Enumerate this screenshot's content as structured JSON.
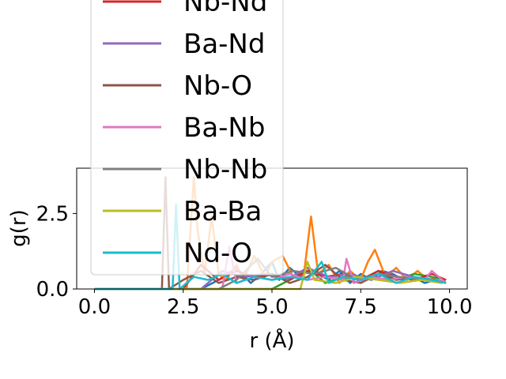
{
  "chart_data": {
    "type": "line",
    "xlabel": "r (Å)",
    "ylabel": "g(r)",
    "xlim": [
      -0.5,
      10.5
    ],
    "ylim": [
      0,
      4.0
    ],
    "xticks": [
      "0.0",
      "2.5",
      "5.0",
      "7.5",
      "10.0"
    ],
    "yticks": [
      "0.0",
      "2.5"
    ],
    "grid": false,
    "legend_position": "upper-left, overflowing above plot",
    "series": [
      {
        "name": "",
        "color": "#1f77b4",
        "x": [
          0,
          1,
          2,
          3,
          3.5,
          4,
          4.4,
          4.7,
          5.0,
          5.2,
          5.5,
          5.8,
          6.0,
          6.3,
          6.6,
          6.9,
          7.2,
          7.5,
          7.8,
          8.1,
          8.4,
          8.7,
          9.0,
          9.3,
          9.6,
          9.9
        ],
        "y": [
          0,
          0,
          0,
          0,
          0.3,
          0.7,
          0.2,
          0.5,
          0.9,
          0.3,
          0.7,
          0.4,
          0.6,
          0.5,
          0.3,
          0.6,
          0.2,
          0.5,
          0.3,
          0.6,
          0.5,
          0.3,
          0.4,
          0.2,
          0.3,
          0.2
        ]
      },
      {
        "name": "",
        "color": "#ff7f0e",
        "x": [
          0,
          1,
          2,
          2.6,
          2.8,
          2.9,
          3.1,
          3.3,
          3.5,
          3.7,
          4.0,
          4.2,
          4.5,
          4.8,
          5.0,
          5.3,
          5.6,
          5.9,
          6.1,
          6.3,
          6.6,
          6.9,
          7.2,
          7.5,
          7.7,
          7.9,
          8.2,
          8.5,
          8.8,
          9.1,
          9.4,
          9.7,
          9.9
        ],
        "y": [
          0,
          0,
          0,
          0,
          3.7,
          2.0,
          0.5,
          2.4,
          0.5,
          0.3,
          0.8,
          0.3,
          1.1,
          0.4,
          0.9,
          1.1,
          0.4,
          0.5,
          2.4,
          0.5,
          0.8,
          0.2,
          0.6,
          0.3,
          0.9,
          1.3,
          0.4,
          0.7,
          0.3,
          0.6,
          0.3,
          0.4,
          0.2
        ]
      },
      {
        "name": "",
        "color": "#2ca02c",
        "x": [
          0,
          1,
          2,
          3,
          4,
          5,
          5.5,
          6.0,
          6.5,
          7.0,
          7.5,
          8.0,
          8.5,
          9.0,
          9.5,
          9.9
        ],
        "y": [
          0,
          0,
          0,
          0,
          0,
          0,
          0.3,
          0.7,
          0.2,
          0.4,
          0.3,
          0.6,
          0.3,
          0.5,
          0.4,
          0.3
        ]
      },
      {
        "name": "Nb-Nd",
        "color": "#d62728",
        "x": [
          0,
          1,
          2,
          2.5,
          3.0,
          3.5,
          4.0,
          4.5,
          5.0,
          5.5,
          6.0,
          6.5,
          7.0,
          7.5,
          8.0,
          8.5,
          9.0,
          9.5,
          9.9
        ],
        "y": [
          0,
          0,
          0,
          0,
          0.8,
          0.3,
          0.6,
          0.4,
          0.5,
          0.3,
          0.6,
          0.4,
          0.5,
          0.3,
          0.6,
          0.4,
          0.3,
          0.5,
          0.3
        ]
      },
      {
        "name": "Ba-Nd",
        "color": "#9467bd",
        "x": [
          0,
          1,
          2,
          3,
          3.6,
          4.2,
          4.8,
          5.4,
          6.0,
          6.6,
          7.2,
          7.8,
          8.4,
          9.0,
          9.6,
          9.9
        ],
        "y": [
          0,
          0,
          0,
          0,
          0.6,
          0.4,
          0.5,
          0.3,
          0.7,
          0.4,
          0.5,
          0.3,
          0.6,
          0.4,
          0.3,
          0.2
        ]
      },
      {
        "name": "Nb-O",
        "color": "#8c564b",
        "x": [
          0,
          1,
          1.9,
          2.0,
          2.1,
          2.5,
          3.0,
          3.5,
          4.0,
          4.5,
          5.0,
          5.5,
          6.0,
          6.5,
          7.0,
          7.5,
          8.0,
          8.5,
          9.0,
          9.5,
          9.9
        ],
        "y": [
          0,
          0,
          0,
          3.7,
          0,
          0.3,
          0.6,
          0.2,
          0.4,
          0.3,
          0.5,
          0.2,
          0.4,
          0.8,
          0.3,
          0.2,
          0.5,
          0.3,
          0.4,
          0.3,
          0.2
        ]
      },
      {
        "name": "Ba-Nb",
        "color": "#e377c2",
        "x": [
          0,
          1,
          2,
          3,
          3.6,
          3.8,
          4.0,
          4.5,
          5.0,
          5.5,
          6.0,
          6.5,
          7.0,
          7.1,
          7.3,
          7.8,
          8.3,
          8.8,
          9.3,
          9.5,
          9.9
        ],
        "y": [
          0,
          0,
          0,
          0,
          0,
          1.4,
          0.2,
          0.4,
          0.3,
          0.5,
          0.3,
          0.4,
          0.3,
          1.0,
          0.2,
          0.4,
          0.3,
          0.4,
          0.3,
          0.6,
          0.2
        ]
      },
      {
        "name": "Nb-Nb",
        "color": "#7f7f7f",
        "x": [
          0,
          1,
          2,
          3,
          3.5,
          4.0,
          4.6,
          5.0,
          5.6,
          6.2,
          6.8,
          7.4,
          8.0,
          8.6,
          9.2,
          9.8
        ],
        "y": [
          0,
          0,
          0,
          0,
          0,
          0.3,
          1.0,
          0.4,
          0.6,
          0.5,
          0.7,
          0.3,
          0.5,
          0.4,
          0.3,
          0.2
        ]
      },
      {
        "name": "Ba-Ba",
        "color": "#bcbd22",
        "x": [
          0,
          1,
          2,
          3,
          4,
          5,
          5.8,
          6.0,
          6.2,
          6.8,
          7.4,
          8.0,
          8.6,
          9.2,
          9.8
        ],
        "y": [
          0,
          0,
          0,
          0,
          0,
          0,
          0,
          0.9,
          0.3,
          0.2,
          0.4,
          0.3,
          0.2,
          0.3,
          0.2
        ]
      },
      {
        "name": "Nd-O",
        "color": "#17becf",
        "x": [
          0,
          1,
          2,
          2.2,
          2.3,
          2.4,
          2.8,
          3.2,
          3.6,
          4.0,
          4.5,
          5.0,
          5.5,
          6.0,
          6.4,
          6.6,
          7.0,
          7.5,
          8.0,
          8.5,
          9.0,
          9.5,
          9.9
        ],
        "y": [
          0,
          0,
          0,
          0,
          2.8,
          0,
          0.4,
          0.3,
          0.5,
          0.2,
          0.4,
          0.3,
          0.4,
          0.3,
          0.9,
          0.2,
          0.4,
          0.3,
          0.5,
          0.2,
          0.4,
          0.3,
          0.2
        ]
      }
    ]
  }
}
